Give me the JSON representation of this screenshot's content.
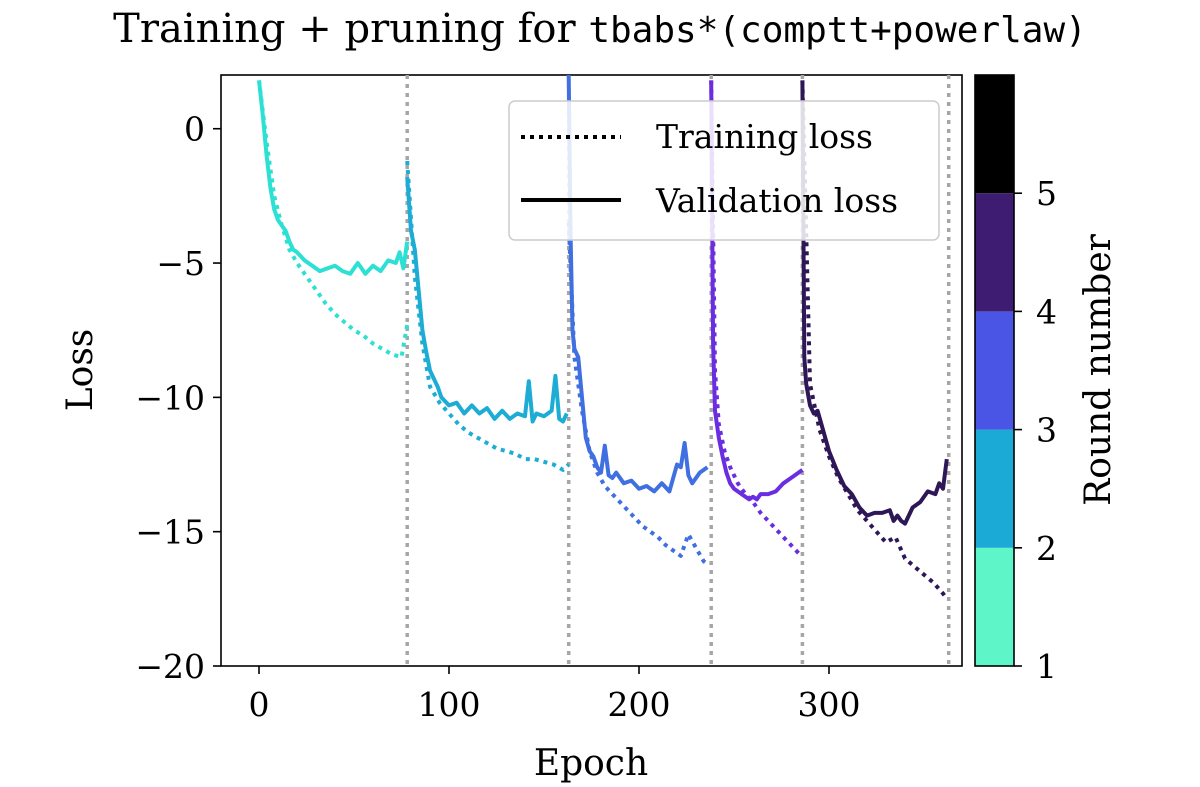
{
  "chart_data": {
    "type": "line",
    "title": "Training + pruning for",
    "title_code": "tbabs*(comptt+powerlaw)",
    "xlabel": "Epoch",
    "ylabel": "Loss",
    "xlim": [
      -20,
      370
    ],
    "ylim": [
      -20,
      2
    ],
    "xticks": [
      0,
      100,
      200,
      300
    ],
    "yticks": [
      -20,
      -15,
      -10,
      -5,
      0
    ],
    "xtick_labels": [
      "0",
      "100",
      "200",
      "300"
    ],
    "ytick_labels": [
      "−20",
      "−15",
      "−10",
      "−5",
      "0"
    ],
    "round_boundaries": [
      78,
      163,
      238,
      286,
      363
    ],
    "legend": {
      "position": "top-right",
      "entries": [
        {
          "label": "Training loss",
          "style": "dotted"
        },
        {
          "label": "Validation loss",
          "style": "solid"
        }
      ]
    },
    "colorbar": {
      "label": "Round number",
      "range": [
        1,
        6
      ],
      "tick_values": [
        1,
        2,
        3,
        4,
        5
      ],
      "tick_labels": [
        "1",
        "2",
        "3",
        "4",
        "5"
      ],
      "colors": [
        "#5ef5c8",
        "#1ba9d6",
        "#4a55e6",
        "#3e1c72",
        "#000000"
      ]
    },
    "series": [
      {
        "name": "Round 1",
        "color": "#2ce0d4",
        "validation": {
          "x": [
            0,
            2,
            4,
            6,
            8,
            10,
            12,
            14,
            16,
            18,
            20,
            24,
            28,
            32,
            36,
            40,
            44,
            48,
            52,
            56,
            60,
            64,
            68,
            72,
            74,
            76,
            78
          ],
          "y": [
            1.8,
            0.5,
            -1.0,
            -2.2,
            -3.0,
            -3.4,
            -3.6,
            -3.8,
            -4.2,
            -4.5,
            -4.6,
            -4.9,
            -5.1,
            -5.3,
            -5.2,
            -5.1,
            -5.3,
            -5.4,
            -5.0,
            -5.4,
            -5.1,
            -5.3,
            -4.9,
            -5.0,
            -4.6,
            -5.2,
            -4.2
          ]
        },
        "training": {
          "x": [
            0,
            4,
            8,
            12,
            16,
            20,
            25,
            30,
            35,
            40,
            45,
            50,
            55,
            60,
            65,
            70,
            75,
            78
          ],
          "y": [
            1.8,
            -0.5,
            -2.5,
            -3.6,
            -4.5,
            -5.0,
            -5.5,
            -6.0,
            -6.5,
            -6.9,
            -7.2,
            -7.5,
            -7.7,
            -8.0,
            -8.2,
            -8.4,
            -8.5,
            -7.3
          ]
        }
      },
      {
        "name": "Round 2",
        "color": "#1cacd4",
        "validation": {
          "x": [
            78,
            80,
            82,
            84,
            86,
            88,
            90,
            92,
            94,
            96,
            100,
            104,
            108,
            112,
            116,
            120,
            124,
            128,
            132,
            136,
            140,
            142,
            144,
            146,
            150,
            154,
            156,
            158,
            160,
            162
          ],
          "y": [
            -1.8,
            -3.8,
            -4.5,
            -6.0,
            -7.5,
            -8.3,
            -9.0,
            -9.3,
            -9.6,
            -10.0,
            -10.3,
            -10.2,
            -10.6,
            -10.3,
            -10.6,
            -10.4,
            -10.8,
            -10.5,
            -10.8,
            -10.6,
            -10.7,
            -9.4,
            -10.9,
            -10.6,
            -10.7,
            -10.5,
            -9.2,
            -10.8,
            -10.9,
            -10.6
          ]
        },
        "training": {
          "x": [
            78,
            82,
            86,
            90,
            95,
            100,
            105,
            110,
            115,
            120,
            125,
            130,
            135,
            140,
            145,
            150,
            155,
            160,
            163
          ],
          "y": [
            -1.2,
            -5.5,
            -8.0,
            -9.6,
            -10.2,
            -10.6,
            -11.0,
            -11.3,
            -11.5,
            -11.7,
            -11.9,
            -12.0,
            -12.1,
            -12.3,
            -12.3,
            -12.4,
            -12.5,
            -12.7,
            -12.5
          ]
        }
      },
      {
        "name": "Round 3",
        "color": "#3f6fe0",
        "validation": {
          "x": [
            163,
            164,
            165,
            166,
            168,
            170,
            172,
            174,
            176,
            178,
            180,
            182,
            184,
            186,
            188,
            192,
            196,
            200,
            204,
            208,
            212,
            216,
            218,
            220,
            222,
            224,
            226,
            228,
            232,
            236
          ],
          "y": [
            2.0,
            -4.0,
            -7.5,
            -8.2,
            -8.5,
            -10.0,
            -11.5,
            -12.0,
            -12.2,
            -12.6,
            -12.8,
            -11.8,
            -12.9,
            -13.0,
            -12.8,
            -13.2,
            -13.1,
            -13.4,
            -13.3,
            -13.5,
            -13.2,
            -13.5,
            -13.0,
            -12.5,
            -12.6,
            -11.7,
            -12.9,
            -13.2,
            -12.8,
            -12.6
          ]
        },
        "training": {
          "x": [
            163,
            166,
            170,
            174,
            178,
            182,
            186,
            190,
            194,
            198,
            202,
            206,
            210,
            214,
            218,
            222,
            226,
            230,
            234,
            236
          ],
          "y": [
            -3.5,
            -8.5,
            -10.5,
            -12.0,
            -12.8,
            -13.3,
            -13.6,
            -13.9,
            -14.2,
            -14.5,
            -14.8,
            -15.0,
            -15.2,
            -15.5,
            -15.7,
            -15.9,
            -15.1,
            -15.6,
            -16.1,
            -16.2
          ]
        }
      },
      {
        "name": "Round 4",
        "color": "#6a2ee0",
        "validation": {
          "x": [
            238,
            239,
            240,
            242,
            244,
            246,
            248,
            250,
            252,
            254,
            256,
            258,
            260,
            262,
            264,
            268,
            272,
            276,
            280,
            284,
            286
          ],
          "y": [
            1.8,
            -8.0,
            -10.5,
            -11.5,
            -12.2,
            -12.8,
            -13.2,
            -13.4,
            -13.5,
            -13.6,
            -13.7,
            -13.8,
            -13.7,
            -13.8,
            -13.6,
            -13.6,
            -13.5,
            -13.2,
            -13.0,
            -12.8,
            -12.7
          ]
        },
        "training": {
          "x": [
            238,
            240,
            242,
            245,
            248,
            252,
            256,
            260,
            264,
            268,
            272,
            276,
            280,
            284
          ],
          "y": [
            1.8,
            -9.0,
            -11.0,
            -12.0,
            -12.6,
            -13.2,
            -13.6,
            -13.9,
            -14.3,
            -14.6,
            -14.9,
            -15.2,
            -15.5,
            -15.8
          ]
        }
      },
      {
        "name": "Round 5",
        "color": "#2e1756",
        "validation": {
          "x": [
            286,
            287,
            288,
            290,
            292,
            294,
            296,
            298,
            300,
            304,
            308,
            312,
            316,
            320,
            324,
            328,
            332,
            334,
            336,
            338,
            340,
            344,
            348,
            352,
            356,
            358,
            360,
            362
          ],
          "y": [
            1.8,
            -8.5,
            -9.5,
            -10.3,
            -10.6,
            -10.5,
            -11.0,
            -11.5,
            -12.0,
            -12.7,
            -13.3,
            -13.6,
            -14.1,
            -14.4,
            -14.3,
            -14.3,
            -14.2,
            -14.6,
            -14.4,
            -14.6,
            -14.7,
            -14.1,
            -13.9,
            -13.5,
            -13.6,
            -13.2,
            -13.4,
            -12.3
          ]
        },
        "training": {
          "x": [
            286,
            290,
            295,
            300,
            305,
            310,
            315,
            320,
            325,
            330,
            335,
            340,
            345,
            350,
            355,
            360,
            362
          ],
          "y": [
            1.8,
            -9.5,
            -11.2,
            -12.2,
            -13.0,
            -13.6,
            -14.2,
            -14.6,
            -15.0,
            -15.4,
            -15.2,
            -16.0,
            -16.3,
            -16.6,
            -16.9,
            -17.3,
            -17.5
          ]
        }
      }
    ]
  }
}
